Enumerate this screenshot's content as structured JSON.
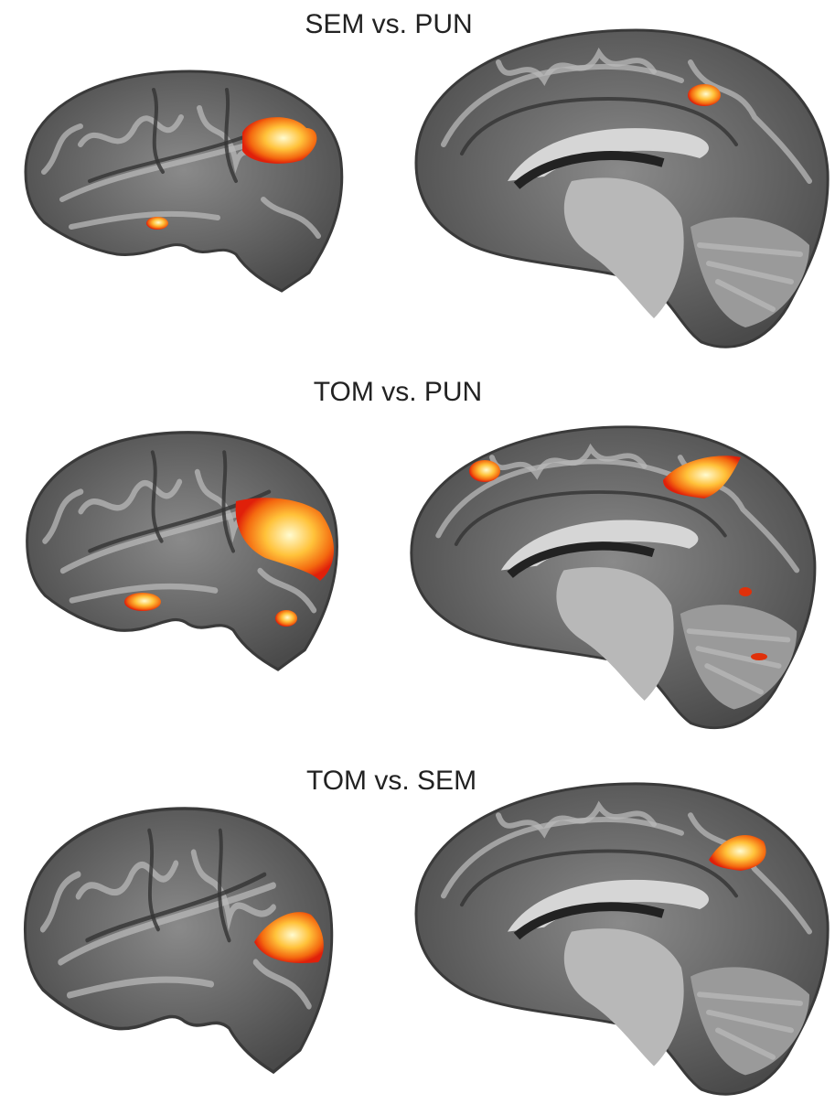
{
  "panels": [
    {
      "title": "SEM vs. PUN"
    },
    {
      "title": "TOM vs. PUN"
    },
    {
      "title": "TOM vs. SEM"
    }
  ]
}
